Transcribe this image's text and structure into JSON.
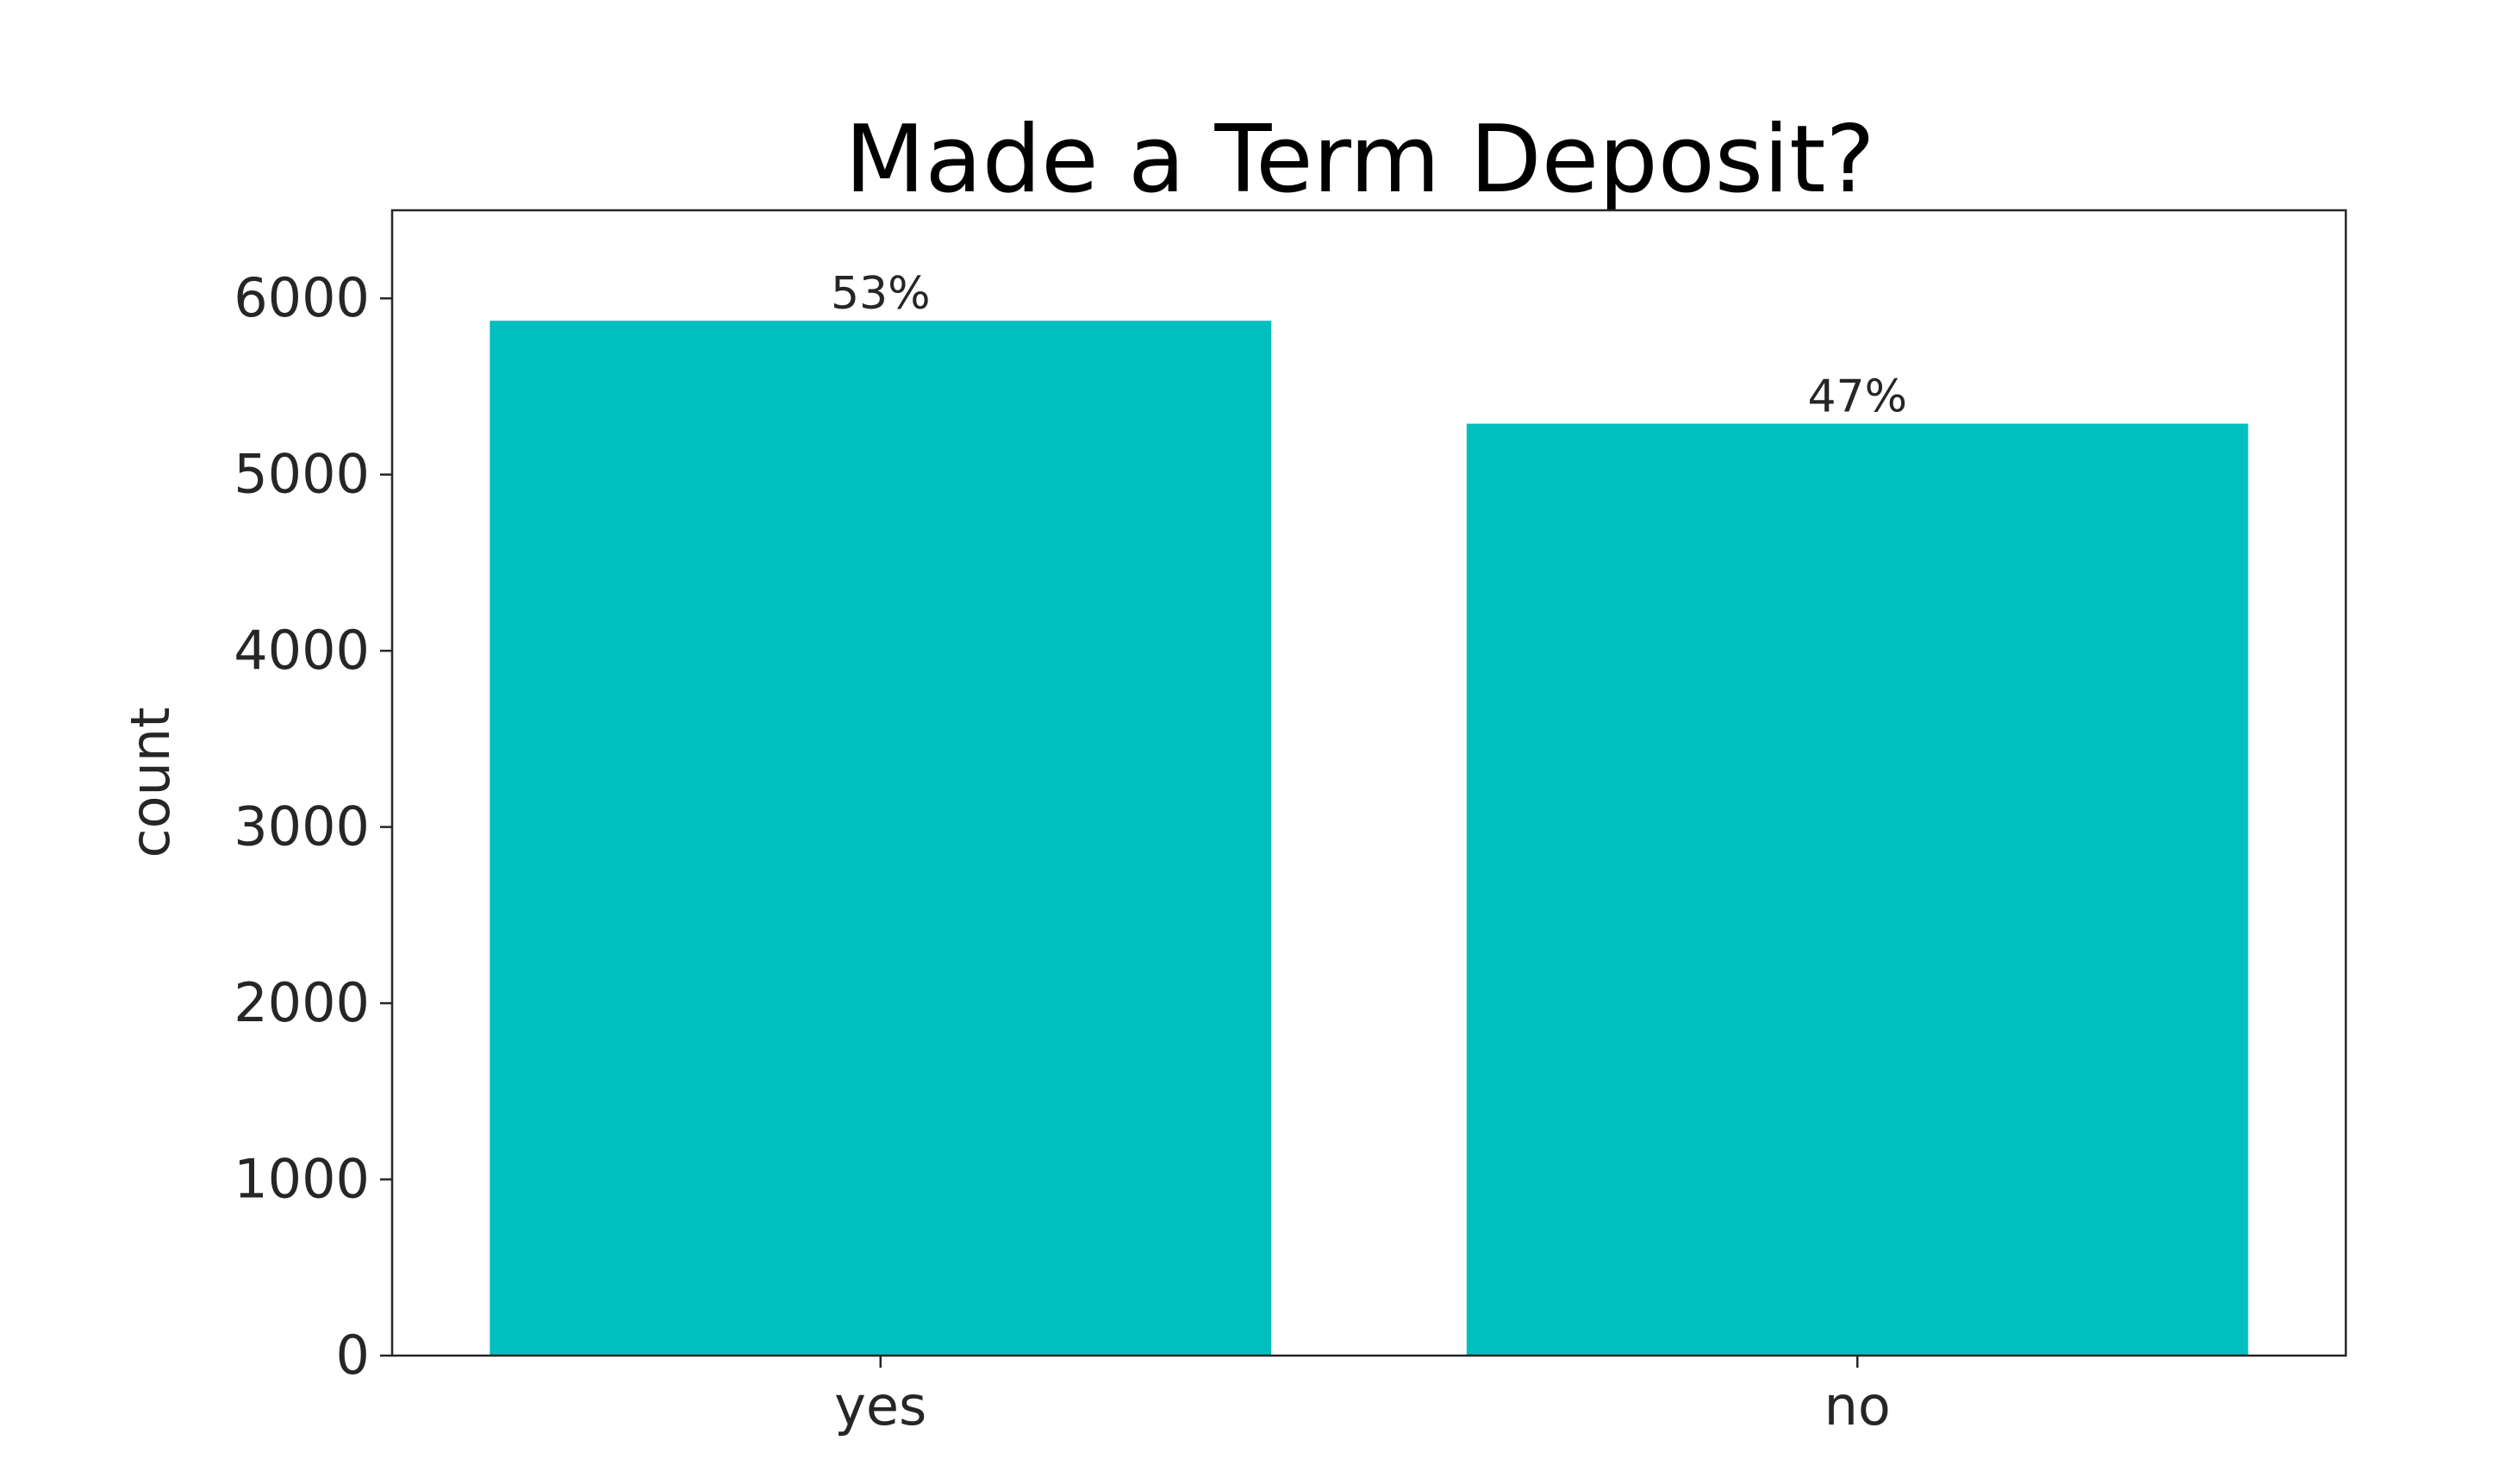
{
  "chart_data": {
    "type": "bar",
    "title": "Made a Term Deposit?",
    "xlabel": "",
    "ylabel": "count",
    "categories": [
      "yes",
      "no"
    ],
    "values": [
      5873,
      5289
    ],
    "bar_labels": [
      "53%",
      "47%"
    ],
    "ylim": [
      0,
      6500
    ],
    "yticks": [
      0,
      1000,
      2000,
      3000,
      4000,
      5000,
      6000
    ],
    "grid": false,
    "legend": "none",
    "colors": {
      "bar": "#00bfbf",
      "axes": "#262626",
      "text": "#262626"
    }
  }
}
